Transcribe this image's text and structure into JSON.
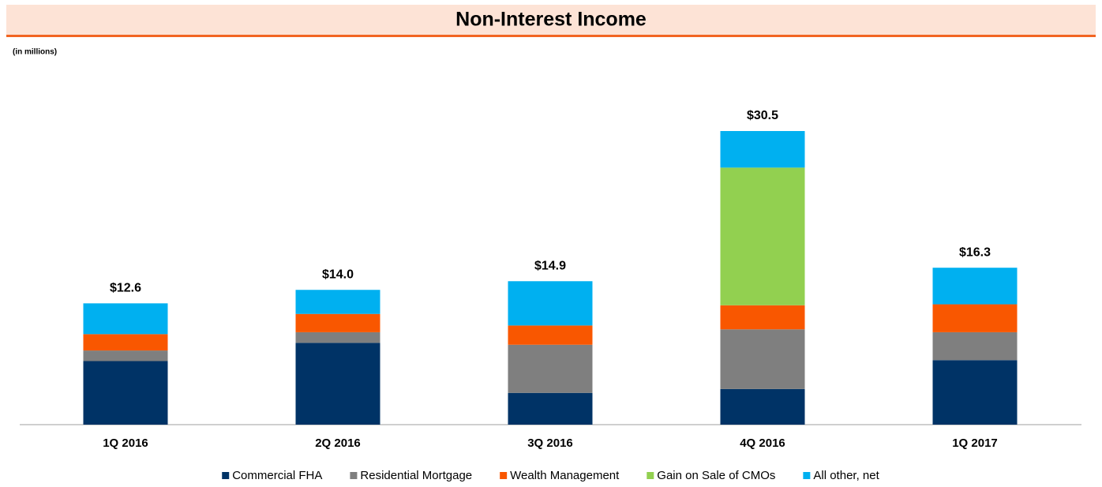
{
  "chart_data": {
    "type": "stacked_bar",
    "title": "Non-Interest Income",
    "subtitle": "(in millions)",
    "categories": [
      "1Q 2016",
      "2Q 2016",
      "3Q 2016",
      "4Q 2016",
      "1Q 2017"
    ],
    "series": [
      {
        "name": "Commercial FHA",
        "color": "#003366",
        "values": [
          6.6,
          8.5,
          3.3,
          3.7,
          6.7
        ]
      },
      {
        "name": "Residential Mortgage",
        "color": "#7f7f7f",
        "values": [
          1.1,
          1.1,
          5.0,
          6.2,
          2.9
        ]
      },
      {
        "name": "Wealth Management",
        "color": "#f95700",
        "values": [
          1.7,
          1.9,
          2.0,
          2.5,
          2.9
        ]
      },
      {
        "name": "Gain on Sale of CMOs",
        "color": "#92d050",
        "values": [
          0,
          0,
          0,
          14.3,
          0
        ]
      },
      {
        "name": "All other, net",
        "color": "#00b0f0",
        "values": [
          3.2,
          2.5,
          4.6,
          3.8,
          3.8
        ]
      }
    ],
    "totals": [
      12.6,
      14.0,
      14.9,
      30.5,
      16.3
    ],
    "total_labels": [
      "$12.6",
      "$14.0",
      "$14.9",
      "$30.5",
      "$16.3"
    ]
  }
}
